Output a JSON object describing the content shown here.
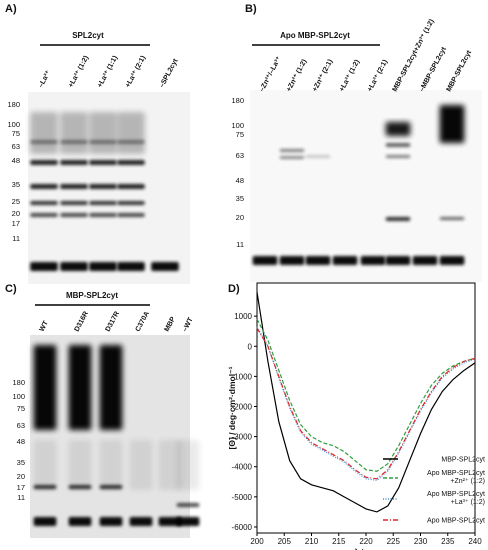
{
  "panels": [
    {
      "label": "A)",
      "header": "SPL2cyt",
      "lanes": [
        "–La³⁺",
        "+La³⁺ (1:2)",
        "+La³⁺ (1:1)",
        "+La³⁺ (2:1)",
        "–SPL2cyt"
      ],
      "markers": [
        180,
        100,
        75,
        63,
        48,
        35,
        25,
        20,
        17,
        11
      ]
    },
    {
      "label": "B)",
      "header": "Apo MBP-SPL2cyt",
      "lanes": [
        "–Zn²⁺/–La³⁺",
        "+Zn²⁺ (1:2)",
        "+Zn²⁺ (2:1)",
        "+La³⁺ (1:2)",
        "+La³⁺ (2:1)",
        "MBP-SPL2cyt+Zn²⁺ (1:2)",
        "–MBP-SPL2cyt",
        "MBP-SPL2cyt"
      ],
      "markers": [
        180,
        100,
        75,
        63,
        48,
        35,
        20,
        11
      ]
    },
    {
      "label": "C)",
      "header": "MBP-SPL2cyt",
      "lanes": [
        "WT",
        "D316R",
        "D317R",
        "C370A",
        "MBP",
        "–WT"
      ],
      "markers": [
        180,
        100,
        75,
        63,
        48,
        35,
        20,
        17,
        11
      ]
    }
  ],
  "chart_data": {
    "type": "line",
    "panel_label": "D)",
    "xlabel": "λ / nm",
    "ylabel": "[Θ] / deg·cm²·dmol⁻¹",
    "x": [
      200,
      202,
      204,
      206,
      208,
      210,
      212,
      214,
      216,
      218,
      220,
      222,
      224,
      226,
      228,
      230,
      232,
      234,
      236,
      238,
      240
    ],
    "series": [
      {
        "name": "MBP-SPL2cyt",
        "color": "#000000",
        "linestyle": "solid",
        "values": [
          1800,
          -500,
          -2500,
          -3800,
          -4400,
          -4600,
          -4700,
          -4800,
          -5000,
          -5200,
          -5400,
          -5500,
          -5300,
          -4700,
          -3800,
          -2900,
          -2100,
          -1500,
          -1100,
          -800,
          -550
        ]
      },
      {
        "name": "Apo MBP-SPL2cyt\n+Zn²⁺ (1:2)",
        "color": "#2e9e3e",
        "linestyle": "dashed",
        "values": [
          900,
          200,
          -800,
          -1800,
          -2600,
          -3000,
          -3200,
          -3300,
          -3500,
          -3800,
          -4100,
          -4150,
          -3900,
          -3300,
          -2600,
          -1900,
          -1300,
          -900,
          -650,
          -500,
          -400
        ]
      },
      {
        "name": "Apo MBP-SPL2cyt\n+La³⁺ (1:2)",
        "color": "#3a8fd6",
        "linestyle": "dotted",
        "values": [
          650,
          0,
          -1050,
          -2050,
          -2850,
          -3250,
          -3450,
          -3650,
          -3850,
          -4150,
          -4400,
          -4450,
          -4150,
          -3550,
          -2850,
          -2150,
          -1550,
          -1050,
          -750,
          -550,
          -420
        ]
      },
      {
        "name": "Apo MBP-SPL2cyt",
        "color": "#e0252a",
        "linestyle": "dashdot",
        "values": [
          600,
          0,
          -1000,
          -2000,
          -2800,
          -3200,
          -3400,
          -3600,
          -3800,
          -4100,
          -4350,
          -4400,
          -4100,
          -3500,
          -2800,
          -2100,
          -1500,
          -1000,
          -700,
          -500,
          -400
        ]
      }
    ],
    "xlim": [
      200,
      240
    ],
    "ylim": [
      -6200,
      2100
    ],
    "xticks": [
      200,
      205,
      210,
      215,
      220,
      225,
      230,
      235,
      240
    ],
    "yticks": [
      1000,
      0,
      -1000,
      -2000,
      -3000,
      -4000,
      -5000,
      -6000
    ]
  }
}
